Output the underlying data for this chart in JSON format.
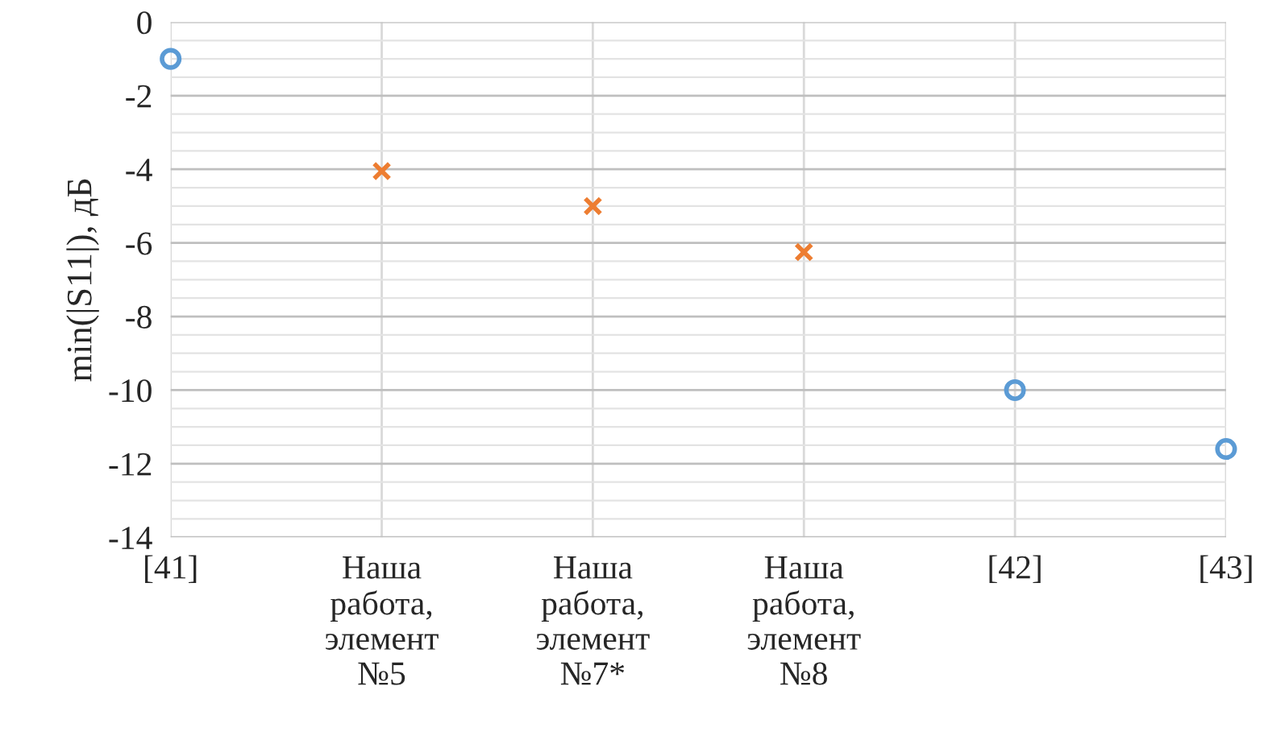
{
  "chart_data": {
    "type": "scatter",
    "ylabel": "min(|S11|), дБ",
    "categories": [
      "[41]",
      "Наша\nработа,\nэлемент\n№5",
      "Наша\nработа,\nэлемент\n№7*",
      "Наша\nработа,\nэлемент\n№8",
      "[42]",
      "[43]"
    ],
    "series": [
      {
        "color": "#5b9bd5",
        "marker": "circle",
        "values": [
          -1,
          null,
          null,
          null,
          -10,
          -11.6
        ]
      },
      {
        "color": "#ed7d31",
        "marker": "cross",
        "values": [
          null,
          -4.05,
          -5,
          -6.25,
          null,
          null
        ]
      }
    ],
    "ylim": [
      -14,
      0
    ],
    "yticks": [
      -14,
      -12,
      -10,
      -8,
      -6,
      -4,
      -2,
      0
    ],
    "grid": true,
    "legend": false
  }
}
